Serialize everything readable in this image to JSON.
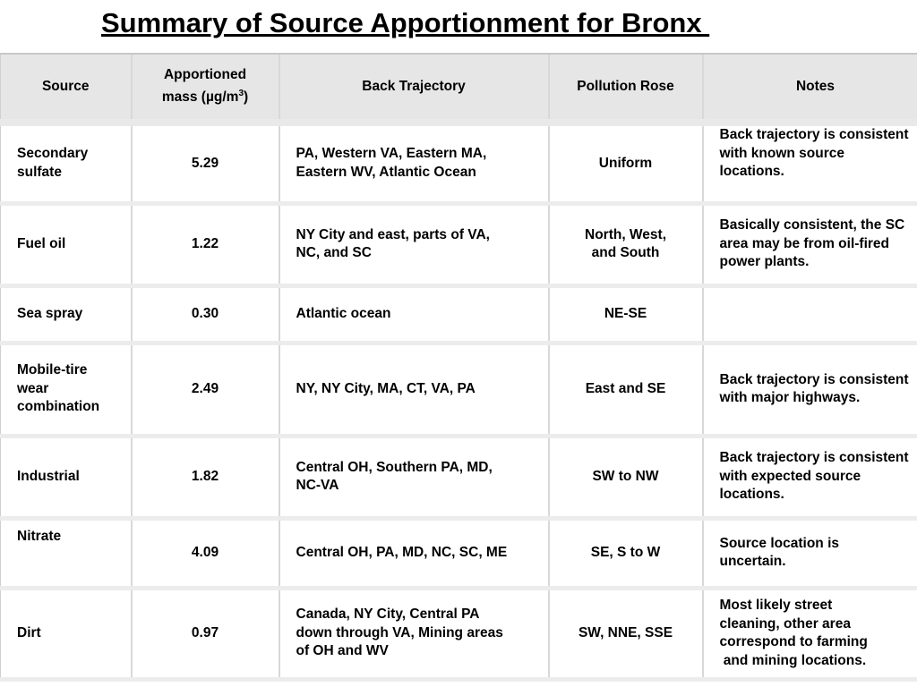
{
  "title": "Summary of Source Apportionment for Bronx ",
  "table": {
    "headers": {
      "source": "Source",
      "mass_line1": "Apportioned",
      "mass_line2": "mass (",
      "mass_unit_mu": "µ",
      "mass_unit_rest": "g/m",
      "mass_sup": "3",
      "mass_close": ")",
      "back_trajectory": "Back Trajectory",
      "pollution_rose": "Pollution Rose",
      "notes": "Notes"
    },
    "rows": [
      {
        "source": "Secondary\nsulfate",
        "mass": "5.29",
        "back_trajectory": "PA, Western VA, Eastern MA,\nEastern WV, Atlantic Ocean",
        "pollution_rose": "Uniform",
        "notes": "Back trajectory is consistent\nwith known source\nlocations."
      },
      {
        "source": "Fuel oil",
        "mass": "1.22",
        "back_trajectory": "NY City and east, parts of VA,\nNC, and SC",
        "pollution_rose": "North, West,\nand South",
        "notes": "Basically consistent, the SC\narea may be from oil-fired\npower plants."
      },
      {
        "source": "Sea spray",
        "mass": "0.30",
        "back_trajectory": "Atlantic ocean",
        "pollution_rose": "NE-SE",
        "notes": ""
      },
      {
        "source": "Mobile-tire\nwear\ncombination",
        "mass": "2.49",
        "back_trajectory": "NY, NY City, MA, CT, VA, PA",
        "pollution_rose": "East and SE",
        "notes": "Back trajectory is consistent\nwith major highways."
      },
      {
        "source": "Industrial",
        "mass": "1.82",
        "back_trajectory": "Central OH, Southern PA, MD,\nNC-VA",
        "pollution_rose": "SW to NW",
        "notes": "Back trajectory is consistent\nwith expected source\nlocations."
      },
      {
        "source": "Nitrate",
        "mass": "4.09",
        "back_trajectory": "Central OH, PA, MD, NC, SC, ME",
        "pollution_rose": "SE, S to W",
        "notes": "Source location is\nuncertain."
      },
      {
        "source": "Dirt",
        "mass": "0.97",
        "back_trajectory": "Canada, NY City, Central PA\ndown through VA, Mining areas\nof OH and WV",
        "pollution_rose": "SW, NNE, SSE",
        "notes": "Most likely street\ncleaning, other area\ncorrespond to farming\n and mining locations."
      }
    ]
  }
}
